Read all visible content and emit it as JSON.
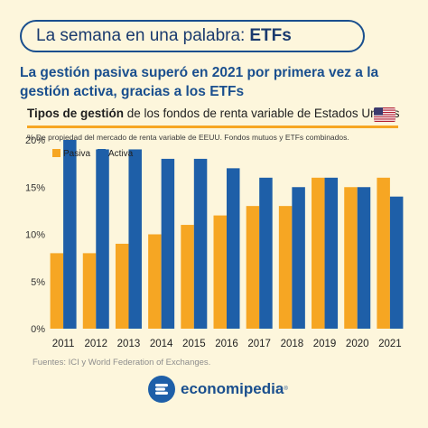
{
  "banner": {
    "prefix": "La semana en una palabra:",
    "keyword": "ETFs"
  },
  "headline": "La gestión pasiva superó en 2021 por primera vez a la gestión activa, gracias a los ETFs",
  "subtitle": {
    "bold": "Tipos de gestión",
    "rest": " de los fondos de renta variable de Estados Unidos"
  },
  "note": "% De propiedad del mercado de renta variable de EEUU. Fondos mutuos y ETFs combinados.",
  "source": "Fuentes: ICI y World Federation of Exchanges.",
  "brand": {
    "name": "economipedia",
    "registered": "®"
  },
  "colors": {
    "pasiva": "#f6a623",
    "activa": "#1e5fa8",
    "title": "#1a4f8e"
  },
  "chart_data": {
    "type": "bar",
    "categories": [
      "2011",
      "2012",
      "2013",
      "2014",
      "2015",
      "2016",
      "2017",
      "2018",
      "2019",
      "2020",
      "2021"
    ],
    "series": [
      {
        "name": "Pasiva",
        "color": "#f6a623",
        "values": [
          8,
          8,
          9,
          10,
          11,
          12,
          13,
          13,
          16,
          15,
          16
        ]
      },
      {
        "name": "Activa",
        "color": "#1e5fa8",
        "values": [
          20,
          19,
          19,
          18,
          18,
          17,
          16,
          15,
          16,
          15,
          14
        ]
      }
    ],
    "yticks": [
      "0%",
      "5%",
      "10%",
      "15%",
      "20%"
    ],
    "ylim": [
      0,
      20
    ],
    "legend": "top-left",
    "grid": false
  }
}
